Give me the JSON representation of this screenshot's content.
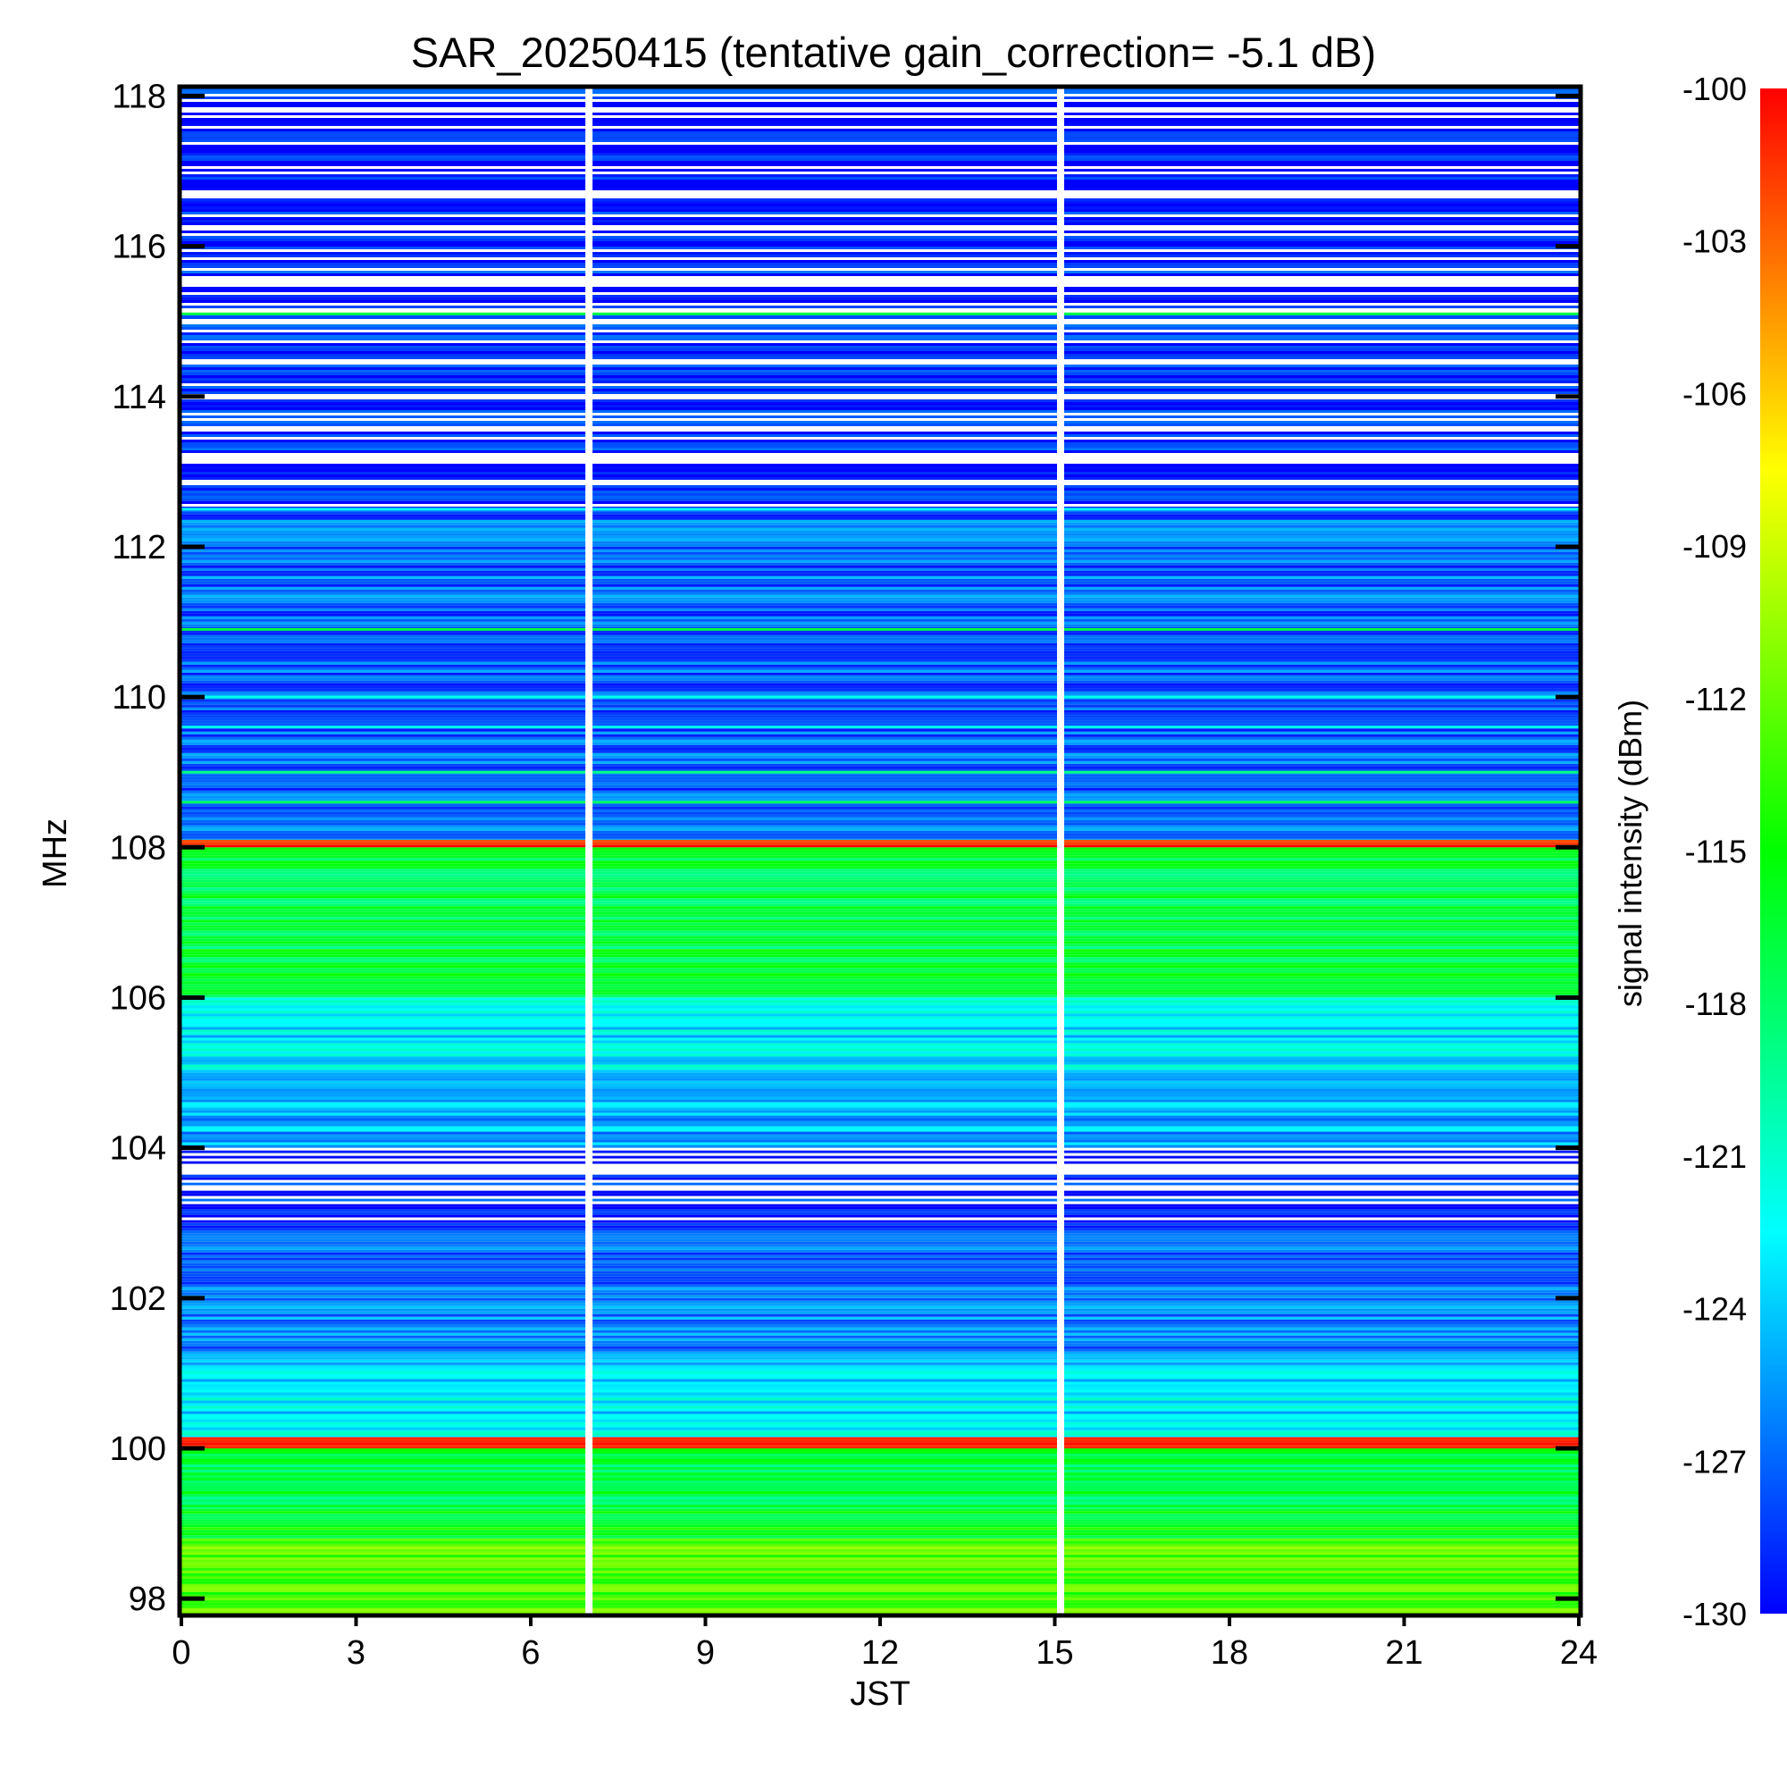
{
  "chart_data": {
    "type": "heatmap",
    "title": "SAR_20250415 (tentative gain_correction= -5.1 dB)",
    "xlabel": "JST",
    "ylabel": "MHz",
    "colorbar_label": "signal intensity (dBm)",
    "xlim": [
      0,
      24
    ],
    "ylim": [
      97.8,
      118.1
    ],
    "x_ticks": [
      0,
      3,
      6,
      9,
      12,
      15,
      18,
      21,
      24
    ],
    "x_tick_labels": [
      "0",
      "3",
      "6",
      "9",
      "12",
      "15",
      "18",
      "21",
      "24"
    ],
    "y_ticks": [
      98,
      100,
      102,
      104,
      106,
      108,
      110,
      112,
      114,
      116,
      118
    ],
    "y_tick_labels": [
      "98",
      "100",
      "102",
      "104",
      "106",
      "108",
      "110",
      "112",
      "114",
      "116",
      "118"
    ],
    "color_range": [
      -130,
      -100
    ],
    "colorbar_ticks": [
      -100,
      -103,
      -106,
      -109,
      -112,
      -115,
      -118,
      -121,
      -124,
      -127,
      -130
    ],
    "colorbar_tick_labels": [
      "-100",
      "-103",
      "-106",
      "-109",
      "-112",
      "-115",
      "-118",
      "-121",
      "-124",
      "-127",
      "-130"
    ],
    "colormap": [
      "#0000ff",
      "#00ffff",
      "#00ff00",
      "#ffff00",
      "#ff0000"
    ],
    "data_gaps_jst": [
      7.0,
      15.1
    ],
    "frequency_bands": [
      {
        "from": 97.8,
        "to": 98.8,
        "dbm": -113
      },
      {
        "from": 98.8,
        "to": 99.2,
        "dbm": -116
      },
      {
        "from": 99.2,
        "to": 100.0,
        "dbm": -117
      },
      {
        "from": 100.0,
        "to": 100.15,
        "dbm": -100
      },
      {
        "from": 100.15,
        "to": 101.1,
        "dbm": -123
      },
      {
        "from": 101.1,
        "to": 102.0,
        "dbm": -126
      },
      {
        "from": 102.0,
        "to": 103.0,
        "dbm": -127
      },
      {
        "from": 103.0,
        "to": 104.0,
        "dbm": -129,
        "sparse": true
      },
      {
        "from": 104.0,
        "to": 105.0,
        "dbm": -125
      },
      {
        "from": 105.0,
        "to": 106.0,
        "dbm": -123
      },
      {
        "from": 106.0,
        "to": 108.0,
        "dbm": -117
      },
      {
        "from": 108.0,
        "to": 108.1,
        "dbm": -100
      },
      {
        "from": 108.1,
        "to": 112.5,
        "dbm": -127
      },
      {
        "from": 112.5,
        "to": 118.1,
        "dbm": -129,
        "sparse": true
      }
    ],
    "narrow_lines": [
      {
        "mhz": 98.6,
        "dbm": -111
      },
      {
        "mhz": 108.6,
        "dbm": -118
      },
      {
        "mhz": 109.0,
        "dbm": -119
      },
      {
        "mhz": 109.6,
        "dbm": -122
      },
      {
        "mhz": 110.0,
        "dbm": -122
      },
      {
        "mhz": 110.9,
        "dbm": -117
      },
      {
        "mhz": 112.5,
        "dbm": -122
      },
      {
        "mhz": 115.1,
        "dbm": -117
      }
    ]
  }
}
